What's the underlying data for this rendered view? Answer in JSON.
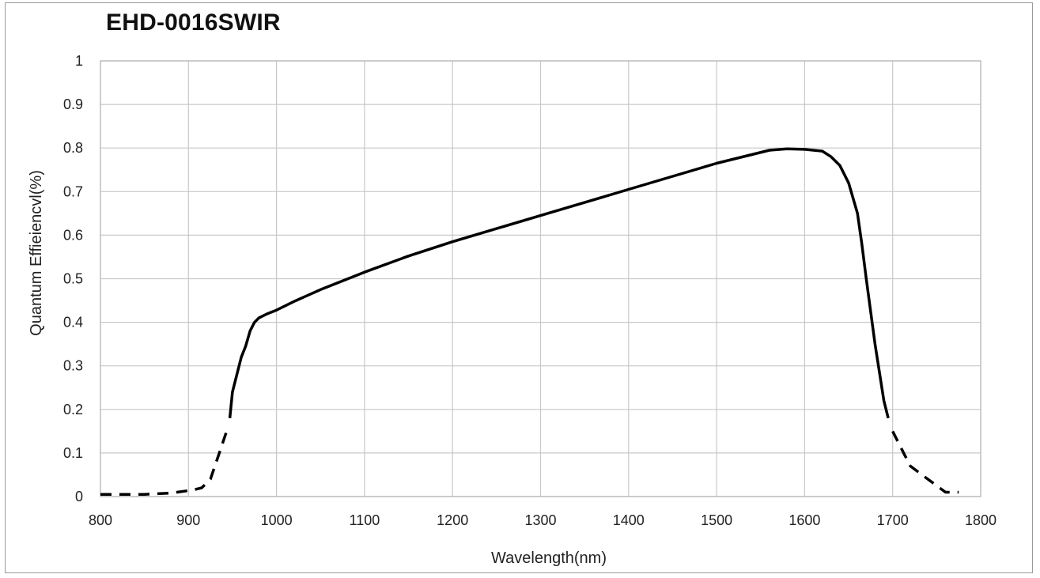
{
  "chart_data": {
    "type": "line",
    "title": "EHD-0016SWIR",
    "xlabel": "Wavelength(nm)",
    "ylabel": "Quantum  Effieiencvl(%)",
    "xlim": [
      800,
      1800
    ],
    "ylim": [
      0,
      1
    ],
    "x_ticks": [
      "800",
      "900",
      "1000",
      "1100",
      "1200",
      "1300",
      "1400",
      "1500",
      "1600",
      "1700",
      "1800"
    ],
    "y_ticks": [
      "0",
      "0.1",
      "0.2",
      "0.3",
      "0.4",
      "0.5",
      "0.6",
      "0.7",
      "0.8",
      "0.9",
      "1"
    ],
    "grid": true,
    "legend": "none",
    "line_color": "#000000",
    "grid_color": "#c8c8c8",
    "series": [
      {
        "style": "dashed",
        "x": [
          800,
          850,
          880,
          905,
          915,
          925,
          935,
          945
        ],
        "y": [
          0.005,
          0.005,
          0.008,
          0.015,
          0.02,
          0.04,
          0.1,
          0.16
        ]
      },
      {
        "style": "solid",
        "x": [
          947,
          950,
          955,
          960,
          965,
          970,
          975,
          980,
          990,
          1000,
          1020,
          1050,
          1100,
          1150,
          1200,
          1250,
          1300,
          1350,
          1400,
          1450,
          1500,
          1540,
          1560,
          1580,
          1600,
          1620,
          1630,
          1640,
          1650,
          1660,
          1665,
          1670,
          1680,
          1690,
          1695
        ],
        "y": [
          0.18,
          0.24,
          0.28,
          0.32,
          0.345,
          0.38,
          0.4,
          0.41,
          0.42,
          0.428,
          0.448,
          0.475,
          0.515,
          0.552,
          0.585,
          0.615,
          0.645,
          0.675,
          0.705,
          0.735,
          0.765,
          0.785,
          0.795,
          0.798,
          0.797,
          0.793,
          0.78,
          0.76,
          0.72,
          0.65,
          0.58,
          0.5,
          0.35,
          0.22,
          0.18
        ]
      },
      {
        "style": "dashed",
        "x": [
          1700,
          1710,
          1720,
          1740,
          1760,
          1770,
          1775
        ],
        "y": [
          0.15,
          0.11,
          0.07,
          0.04,
          0.01,
          0.01,
          0.01
        ]
      }
    ]
  }
}
